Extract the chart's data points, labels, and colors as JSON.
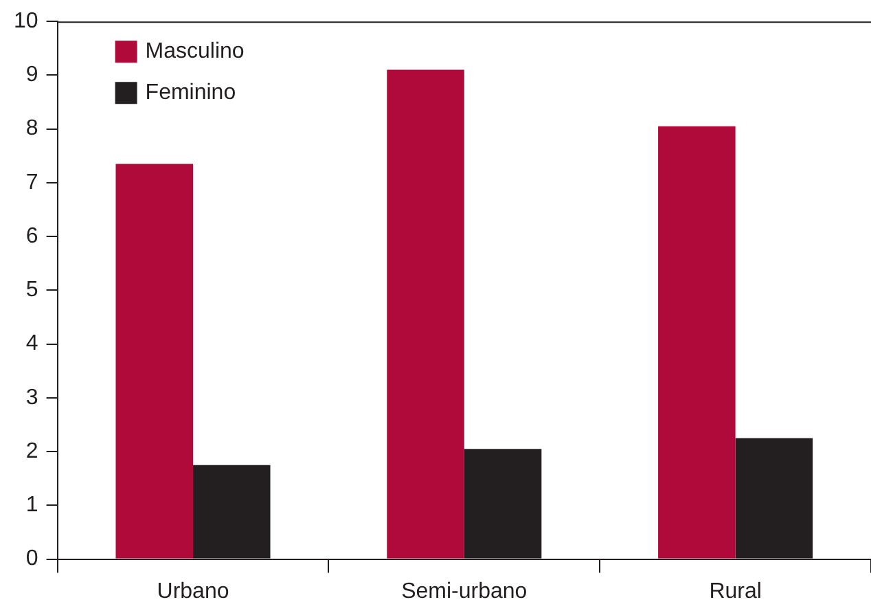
{
  "chart_data": {
    "type": "bar",
    "categories": [
      "Urbano",
      "Semi-urbano",
      "Rural"
    ],
    "series": [
      {
        "name": "Masculino",
        "color": "#b00a3a",
        "values": [
          7.35,
          9.1,
          8.05
        ]
      },
      {
        "name": "Feminino",
        "color": "#231f20",
        "values": [
          1.75,
          2.05,
          2.25
        ]
      }
    ],
    "ylim": [
      0,
      10
    ],
    "yticks": [
      0,
      1,
      2,
      3,
      4,
      5,
      6,
      7,
      8,
      9,
      10
    ],
    "grid": false,
    "legend": "top left"
  }
}
